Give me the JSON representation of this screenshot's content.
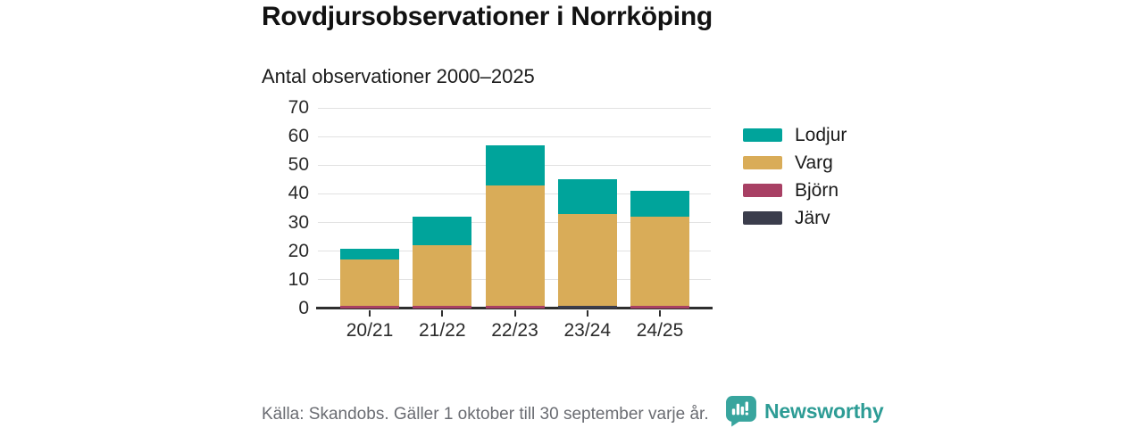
{
  "header": {
    "title": "Rovdjursobservationer i Norrköping",
    "subtitle": "Antal observationer 2000–2025"
  },
  "chart_data": {
    "type": "bar",
    "stacked": true,
    "title": "Rovdjursobservationer i Norrköping",
    "subtitle": "Antal observationer 2000–2025",
    "categories": [
      "20/21",
      "21/22",
      "22/23",
      "23/24",
      "24/25"
    ],
    "series": [
      {
        "name": "Lodjur",
        "color": "#00a49b",
        "values": [
          4,
          10,
          14,
          12,
          9
        ]
      },
      {
        "name": "Varg",
        "color": "#d9ac58",
        "values": [
          16,
          21,
          42,
          32,
          31
        ]
      },
      {
        "name": "Björn",
        "color": "#a84064",
        "values": [
          1,
          1,
          1,
          0,
          1
        ]
      },
      {
        "name": "Järv",
        "color": "#3b3d4c",
        "values": [
          0,
          0,
          0,
          1,
          0
        ]
      }
    ],
    "stack_order_bottom_to_top": [
      "Järv",
      "Björn",
      "Varg",
      "Lodjur"
    ],
    "totals": [
      21,
      32,
      57,
      45,
      41
    ],
    "ylim": [
      0,
      70
    ],
    "yticks": [
      0,
      10,
      20,
      30,
      40,
      50,
      60,
      70
    ],
    "xlabel": "",
    "ylabel": "",
    "grid": "horizontal",
    "legend_position": "right"
  },
  "footer": {
    "source": "Källa: Skandobs. Gäller 1 oktober till 30 september varje år.",
    "brand": "Newsworthy"
  },
  "colors": {
    "lodjur": "#00a49b",
    "varg": "#d9ac58",
    "bjorn": "#a84064",
    "jarv": "#3b3d4c",
    "brand_teal": "#38a59e",
    "axis": "#2e2e2e",
    "gridline": "#e2e2e2",
    "source_text": "#6a6c72"
  }
}
